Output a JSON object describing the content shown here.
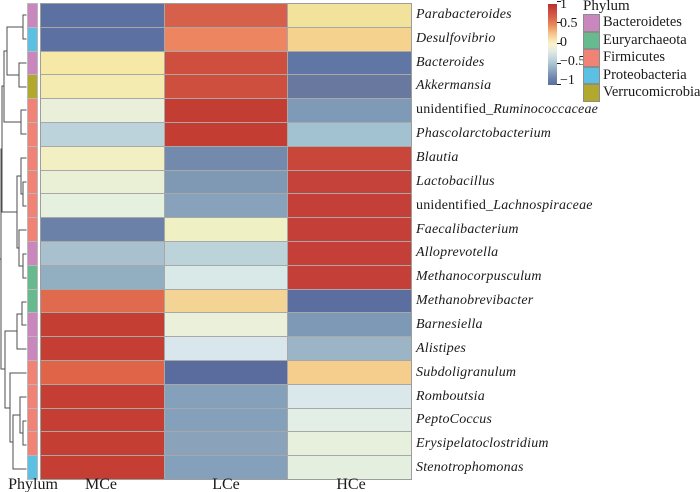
{
  "figure": {
    "bottom_axis": {
      "phylum_label": "Phylum",
      "column_labels": [
        "MCe",
        "LCe",
        "HCe"
      ]
    }
  },
  "legend": {
    "colorbar": {
      "tick_labels": [
        "1",
        "0.5",
        "0",
        "−0.5",
        "−1"
      ]
    },
    "phylum": {
      "title": "Phylum",
      "items": [
        {
          "label": "Bacteroidetes",
          "color": "#c987bd"
        },
        {
          "label": "Euryarchaeota",
          "color": "#67ba8d"
        },
        {
          "label": "Firmicutes",
          "color": "#f08376"
        },
        {
          "label": "Proteobacteria",
          "color": "#5cc0e3"
        },
        {
          "label": "Verrucomicrobia",
          "color": "#b2a82d"
        }
      ]
    }
  },
  "chart_data": {
    "type": "heatmap",
    "title": "",
    "columns": [
      "MCe",
      "LCe",
      "HCe"
    ],
    "colorscale": {
      "min": -1,
      "max": 1,
      "ticks": [
        1,
        0.5,
        0,
        -0.5,
        -1
      ],
      "palette": "red(high) - cream(0) - blue(low)"
    },
    "phylum_colors": {
      "Bacteroidetes": "#c987bd",
      "Euryarchaeota": "#67ba8d",
      "Firmicutes": "#f08376",
      "Proteobacteria": "#5cc0e3",
      "Verrucomicrobia": "#b2a82d"
    },
    "rows": [
      {
        "prefix": "",
        "label": "Parabacteroides",
        "phylum": "Bacteroidetes",
        "values": [
          -1.0,
          0.75,
          0.2
        ],
        "colors": [
          "#5d70a2",
          "#d7604a",
          "#f2e39c"
        ]
      },
      {
        "prefix": "",
        "label": "Desulfovibrio",
        "phylum": "Proteobacteria",
        "values": [
          -1.0,
          0.55,
          0.35
        ],
        "colors": [
          "#5d70a2",
          "#ec8560",
          "#f5d38e"
        ]
      },
      {
        "prefix": "",
        "label": "Bacteroides",
        "phylum": "Bacteroidetes",
        "values": [
          0.2,
          0.9,
          -0.95
        ],
        "colors": [
          "#f6e8a6",
          "#cf4f3f",
          "#6076a4"
        ]
      },
      {
        "prefix": "",
        "label": "Akkermansia",
        "phylum": "Verrucomicrobia",
        "values": [
          0.15,
          0.9,
          -0.85
        ],
        "colors": [
          "#f4ebb0",
          "#cf4f3f",
          "#68789f"
        ]
      },
      {
        "prefix": "unidentified_ ",
        "label": "Ruminococcaceae",
        "phylum": "Firmicutes",
        "values": [
          -0.1,
          1.0,
          -0.6
        ],
        "colors": [
          "#e9efd8",
          "#c33d33",
          "#7f9ab7"
        ]
      },
      {
        "prefix": "",
        "label": "Phascolarctobacterium",
        "phylum": "Firmicutes",
        "values": [
          -0.45,
          1.0,
          -0.35
        ],
        "colors": [
          "#bdd3dc",
          "#c33d33",
          "#a2c2d2"
        ]
      },
      {
        "prefix": "",
        "label": "Blautia",
        "phylum": "Firmicutes",
        "values": [
          0.05,
          -0.75,
          0.9
        ],
        "colors": [
          "#f2f0c2",
          "#738aad",
          "#c9463b"
        ]
      },
      {
        "prefix": "",
        "label": "Lactobacillus",
        "phylum": "Firmicutes",
        "values": [
          -0.1,
          -0.6,
          1.0
        ],
        "colors": [
          "#eaf0d6",
          "#7f99b5",
          "#c4423a"
        ]
      },
      {
        "prefix": "unidentified_ ",
        "label": "Lachnospiraceae",
        "phylum": "Firmicutes",
        "values": [
          -0.15,
          -0.55,
          1.0
        ],
        "colors": [
          "#e6f0de",
          "#89a2bb",
          "#c33f37"
        ]
      },
      {
        "prefix": "",
        "label": "Faecalibacterium",
        "phylum": "Firmicutes",
        "values": [
          -0.85,
          0.05,
          1.0
        ],
        "colors": [
          "#6b81a8",
          "#eff0c3",
          "#c33f37"
        ]
      },
      {
        "prefix": "",
        "label": "Alloprevotella",
        "phylum": "Bacteroidetes",
        "values": [
          -0.45,
          -0.35,
          1.0
        ],
        "colors": [
          "#a9c1cf",
          "#bbd3d9",
          "#c33f37"
        ]
      },
      {
        "prefix": "",
        "label": "Methanocorpusculum",
        "phylum": "Euryarchaeota",
        "values": [
          -0.6,
          -0.2,
          1.0
        ],
        "colors": [
          "#92aec1",
          "#d9e9e8",
          "#c33f37"
        ]
      },
      {
        "prefix": "",
        "label": "Methanobrevibacter",
        "phylum": "Euryarchaeota",
        "values": [
          0.7,
          0.3,
          -1.0
        ],
        "colors": [
          "#e06a4d",
          "#f3d494",
          "#5c6da0"
        ]
      },
      {
        "prefix": "",
        "label": "Barnesiella",
        "phylum": "Bacteroidetes",
        "values": [
          1.0,
          -0.1,
          -0.6
        ],
        "colors": [
          "#c43e34",
          "#eaf0da",
          "#7e99b5"
        ]
      },
      {
        "prefix": "",
        "label": "Alistipes",
        "phylum": "Bacteroidetes",
        "values": [
          1.0,
          -0.25,
          -0.5
        ],
        "colors": [
          "#c43e34",
          "#d9e7ec",
          "#9cb5c6"
        ]
      },
      {
        "prefix": "",
        "label": "Subdoligranulum",
        "phylum": "Firmicutes",
        "values": [
          0.75,
          -1.0,
          0.35
        ],
        "colors": [
          "#df6448",
          "#5a6b9d",
          "#f5cd8c"
        ]
      },
      {
        "prefix": "",
        "label": "Romboutsia",
        "phylum": "Firmicutes",
        "values": [
          1.0,
          -0.55,
          -0.25
        ],
        "colors": [
          "#c43e34",
          "#85a0ba",
          "#dae8ec"
        ]
      },
      {
        "prefix": "",
        "label": "PeptoCoccus",
        "phylum": "Firmicutes",
        "values": [
          1.0,
          -0.55,
          -0.15
        ],
        "colors": [
          "#c43e34",
          "#85a0ba",
          "#e3eee6"
        ]
      },
      {
        "prefix": "",
        "label": "Erysipelatoclostridium",
        "phylum": "Firmicutes",
        "values": [
          1.0,
          -0.5,
          -0.1
        ],
        "colors": [
          "#c43e34",
          "#8aa3bb",
          "#e7f0dd"
        ]
      },
      {
        "prefix": "",
        "label": "Stenotrophomonas",
        "phylum": "Proteobacteria",
        "values": [
          1.0,
          -0.55,
          -0.12
        ],
        "colors": [
          "#c43e34",
          "#85a0ba",
          "#e5efdf"
        ]
      }
    ]
  }
}
